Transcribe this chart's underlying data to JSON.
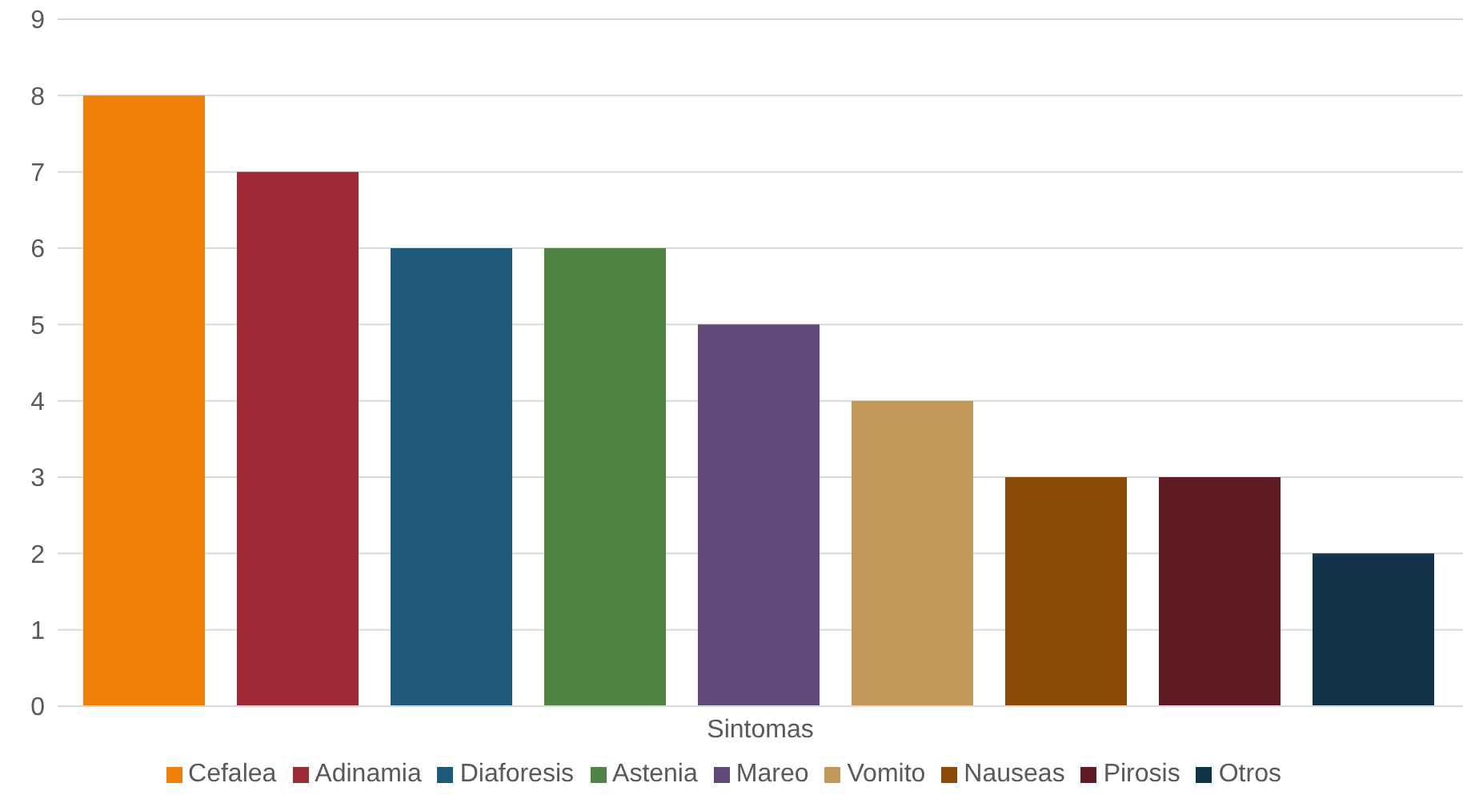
{
  "chart_data": {
    "type": "bar",
    "categories": [
      "Sintomas"
    ],
    "series": [
      {
        "name": "Cefalea",
        "color": "#f07f09",
        "values": [
          8
        ]
      },
      {
        "name": "Adinamia",
        "color": "#9e2a36",
        "values": [
          7
        ]
      },
      {
        "name": "Diaforesis",
        "color": "#1f5a7a",
        "values": [
          6
        ]
      },
      {
        "name": "Astenia",
        "color": "#4e8542",
        "values": [
          6
        ]
      },
      {
        "name": "Mareo",
        "color": "#604878",
        "values": [
          5
        ]
      },
      {
        "name": "Vomito",
        "color": "#c19858",
        "values": [
          4
        ]
      },
      {
        "name": "Nauseas",
        "color": "#8b4a08",
        "values": [
          3
        ]
      },
      {
        "name": "Pirosis",
        "color": "#5e1c22",
        "values": [
          3
        ]
      },
      {
        "name": "Otros",
        "color": "#12344a",
        "values": [
          2
        ]
      }
    ],
    "ylim": [
      0,
      9
    ],
    "yticks": [
      0,
      1,
      2,
      3,
      4,
      5,
      6,
      7,
      8,
      9
    ],
    "grid": "y",
    "legend": "bottom"
  }
}
